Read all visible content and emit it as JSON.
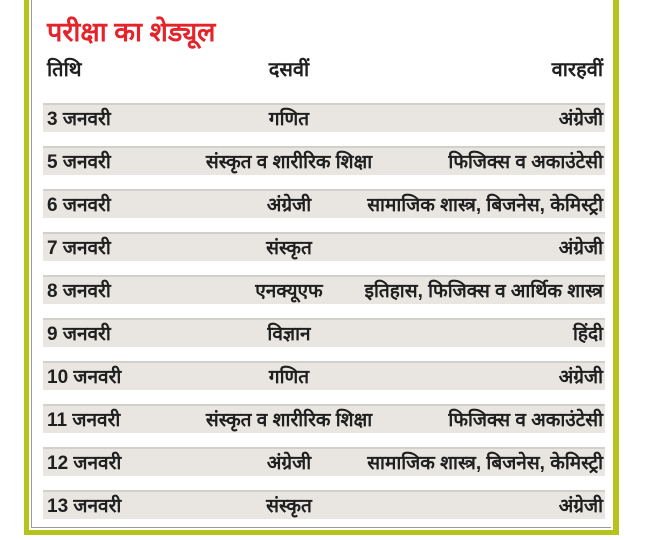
{
  "panel": {
    "title": "परीक्षा का शेड्यूल"
  },
  "table": {
    "columns": {
      "date": "तिथि",
      "class10": "दसवीं",
      "class12": "वारहवीं"
    },
    "rows": [
      [
        "3 जनवरी",
        "गणित",
        "अंग्रेजी"
      ],
      [
        "5 जनवरी",
        "संस्कृत व शारीरिक शिक्षा",
        "फिजिक्स व अकाउंटेसी"
      ],
      [
        "6 जनवरी",
        "अंग्रेजी",
        "सामाजिक शास्त्र, बिजनेस, केमिस्ट्री"
      ],
      [
        "7 जनवरी",
        "संस्कृत",
        "अंग्रेजी"
      ],
      [
        "8 जनवरी",
        "एनक्यूएफ",
        "इतिहास, फिजिक्स व आर्थिक शास्त्र"
      ],
      [
        "9 जनवरी",
        "विज्ञान",
        "हिंदी"
      ],
      [
        "10 जनवरी",
        "गणित",
        "अंग्रेजी"
      ],
      [
        "11 जनवरी",
        "संस्कृत व शारीरिक शिक्षा",
        "फिजिक्स व अकाउंटेसी"
      ],
      [
        "12 जनवरी",
        "अंग्रेजी",
        "सामाजिक शास्त्र, बिजनेस, केमिस्ट्री"
      ],
      [
        "13 जनवरी",
        "संस्कृत",
        "अंग्रेजी"
      ]
    ]
  },
  "colors": {
    "border_green": "#b6c31d",
    "hairline_gray": "#9b9b99",
    "row_band_gray": "#e9e6e2",
    "title_red": "#e4232a"
  }
}
